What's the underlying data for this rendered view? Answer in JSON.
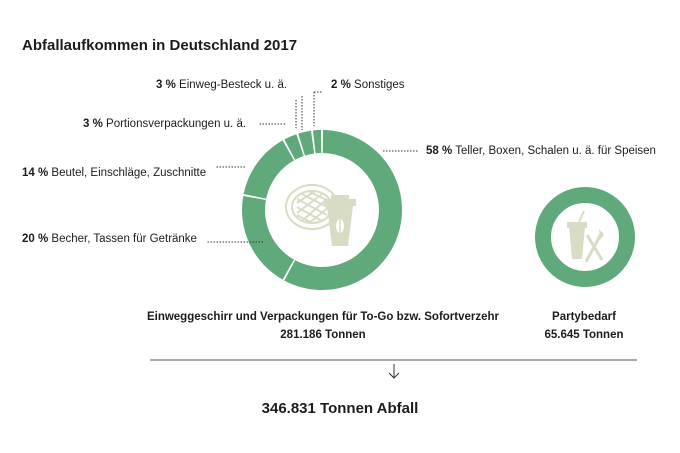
{
  "title": "Abfallaufkommen in Deutschland 2017",
  "chart_data": [
    {
      "type": "pie",
      "categories": [
        "Teller, Boxen, Schalen u. ä. für Speisen",
        "Becher, Tassen für Getränke",
        "Beutel, Einschläge, Zuschnitte",
        "Portionsverpackungen u. ä.",
        "Einweg-Besteck u. ä.",
        "Sonstiges"
      ],
      "values": [
        58,
        20,
        14,
        3,
        3,
        2
      ],
      "value_labels": [
        "58 %",
        "20 %",
        "14 %",
        "3 %",
        "3 %",
        "2 %"
      ],
      "caption": "Einweggeschirr und Verpackungen für To-Go bzw. Sofortverzehr",
      "amount": "281.186 Tonnen",
      "color": "#5fa97b"
    },
    {
      "type": "pie",
      "categories": [
        "Partybedarf"
      ],
      "values": [
        100
      ],
      "caption": "Partybedarf",
      "amount": "65.645 Tonnen",
      "color": "#5fa97b"
    }
  ],
  "total": "346.831 Tonnen Abfall",
  "icons": [
    "food-container-and-coffee-cup-icon",
    "party-cup-and-cutlery-icon",
    "down-arrow-icon"
  ],
  "colors": {
    "ring": "#5fa97b",
    "icon": "#d8dcc4",
    "text": "#1c1c1c"
  }
}
